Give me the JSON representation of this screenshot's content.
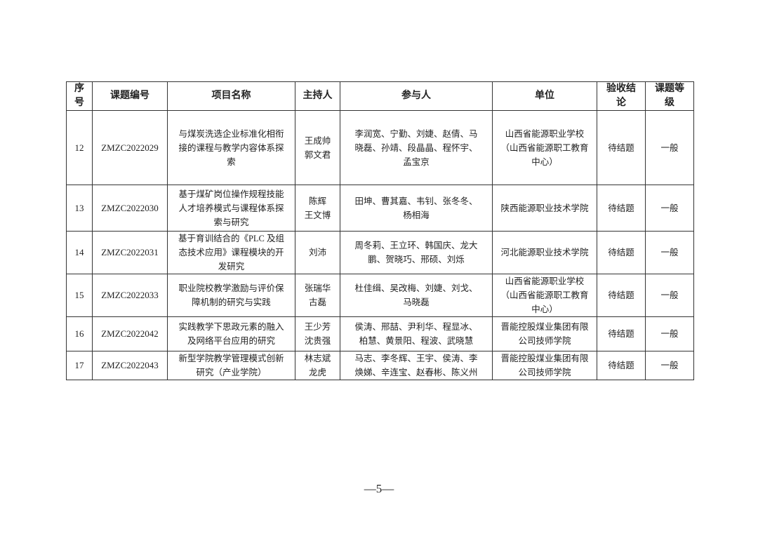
{
  "table": {
    "headers": [
      "序\n号",
      "课题编号",
      "项目名称",
      "主持人",
      "参与人",
      "单位",
      "验收结\n论",
      "课题等\n级"
    ],
    "rows": [
      [
        "12",
        "ZMZC2022029",
        "与煤炭洗选企业标准化相衔\n接的课程与教学内容体系探\n索",
        "王成帅\n郭文君",
        "李润宽、宁勤、刘婕、赵倩、马\n晓磊、孙靖、段晶晶、程怀宇、\n孟宝京",
        "山西省能源职业学校\n（山西省能源职工教育\n中心）",
        "待结题",
        "一般"
      ],
      [
        "13",
        "ZMZC2022030",
        "基于煤矿岗位操作规程技能\n人才培养模式与课程体系探\n索与研究",
        "陈辉\n王文博",
        "田坤、曹其嘉、韦钊、张冬冬、\n杨相海",
        "陕西能源职业技术学院",
        "待结题",
        "一般"
      ],
      [
        "14",
        "ZMZC2022031",
        "基于育训结合的《PLC 及组\n态技术应用》课程模块的开\n发研究",
        "刘沛",
        "周冬莉、王立环、韩国庆、龙大\n鹏、贺晓巧、邢硕、刘烁",
        "河北能源职业技术学院",
        "待结题",
        "一般"
      ],
      [
        "15",
        "ZMZC2022033",
        "职业院校教学激励与评价保\n障机制的研究与实践",
        "张瑞华\n古磊",
        "杜佳缉、吴改梅、刘婕、刘戈、\n马晓磊",
        "山西省能源职业学校\n（山西省能源职工教育\n中心）",
        "待结题",
        "一般"
      ],
      [
        "16",
        "ZMZC2022042",
        "实践教学下思政元素的融入\n及网络平台应用的研究",
        "王少芳\n沈贵强",
        "侯涛、邢喆、尹利华、程显冰、\n柏慧、黄景阳、程波、武晓慧",
        "晋能控股煤业集团有限\n公司技师学院",
        "待结题",
        "一般"
      ],
      [
        "17",
        "ZMZC2022043",
        "新型学院教学管理模式创新\n研究（产业学院）",
        "林志斌\n龙虎",
        "马志、李冬辉、王宇、侯涛、李\n焕娣、辛连宝、赵春彬、陈义州",
        "晋能控股煤业集团有限\n公司技师学院",
        "待结题",
        "一般"
      ]
    ]
  },
  "footer": {
    "page_number": "—5—"
  }
}
